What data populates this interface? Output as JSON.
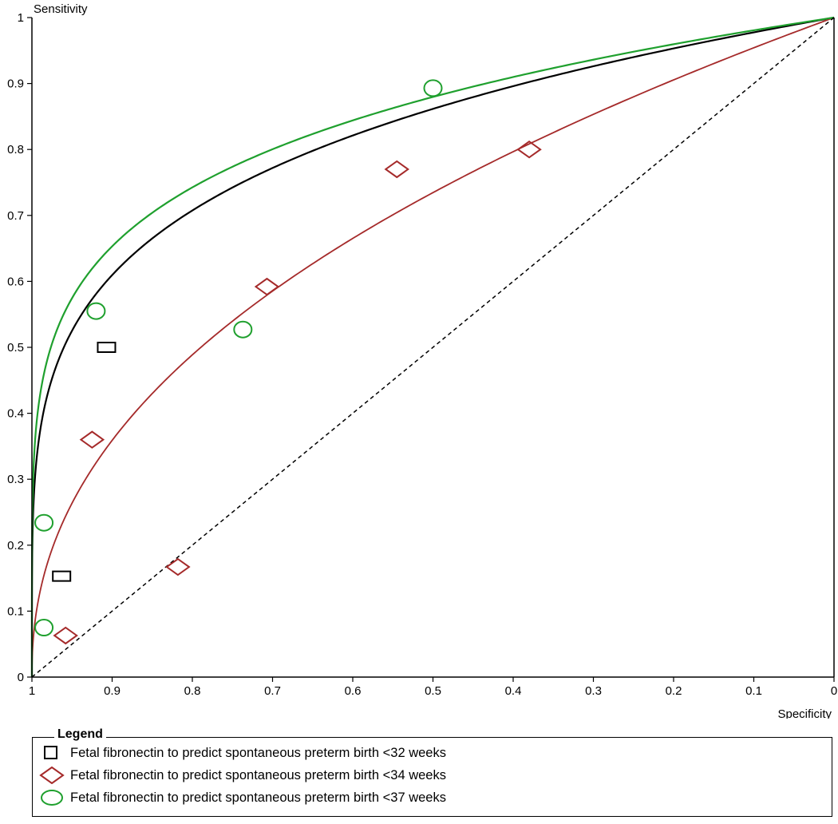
{
  "chart_data": {
    "type": "scatter",
    "title": "",
    "xlabel": "Specificity",
    "ylabel": "Sensitivity",
    "xlim": [
      1,
      0
    ],
    "ylim": [
      0,
      1
    ],
    "x_reversed": true,
    "grid": false,
    "x_ticks": [
      1,
      0.9,
      0.8,
      0.7,
      0.6,
      0.5,
      0.4,
      0.3,
      0.2,
      0.1,
      0
    ],
    "y_ticks": [
      0,
      0.1,
      0.2,
      0.3,
      0.4,
      0.5,
      0.6,
      0.7,
      0.8,
      0.9,
      1
    ],
    "x_tick_labels": [
      "1",
      "0.9",
      "0.8",
      "0.7",
      "0.6",
      "0.5",
      "0.4",
      "0.3",
      "0.2",
      "0.1",
      "0"
    ],
    "y_tick_labels": [
      "0",
      "0.1",
      "0.2",
      "0.3",
      "0.4",
      "0.5",
      "0.6",
      "0.7",
      "0.8",
      "0.9",
      "1"
    ],
    "legend_title": "Legend",
    "legend_placement": "bottom",
    "series": [
      {
        "name": "Fetal fibronectin to predict spontaneous preterm birth <32 weeks",
        "marker": "square",
        "color": "#000000",
        "curve_exponent": 0.215,
        "points": [
          {
            "x": 0.963,
            "y": 0.153
          },
          {
            "x": 0.907,
            "y": 0.5
          }
        ]
      },
      {
        "name": "Fetal fibronectin to predict spontaneous preterm birth <34 weeks",
        "marker": "diamond",
        "color": "#a52a2a",
        "curve_exponent": 0.445,
        "points": [
          {
            "x": 0.958,
            "y": 0.063
          },
          {
            "x": 0.925,
            "y": 0.36
          },
          {
            "x": 0.818,
            "y": 0.167
          },
          {
            "x": 0.707,
            "y": 0.592
          },
          {
            "x": 0.545,
            "y": 0.77
          },
          {
            "x": 0.38,
            "y": 0.8
          }
        ]
      },
      {
        "name": "Fetal fibronectin to predict spontaneous preterm birth <37 weeks",
        "marker": "circle",
        "color": "#1fa02e",
        "curve_exponent": 0.185,
        "points": [
          {
            "x": 0.985,
            "y": 0.234
          },
          {
            "x": 0.985,
            "y": 0.075
          },
          {
            "x": 0.92,
            "y": 0.555
          },
          {
            "x": 0.737,
            "y": 0.527
          },
          {
            "x": 0.5,
            "y": 0.893
          }
        ]
      }
    ],
    "reference_line": {
      "style": "dashed",
      "color": "#000000"
    }
  }
}
